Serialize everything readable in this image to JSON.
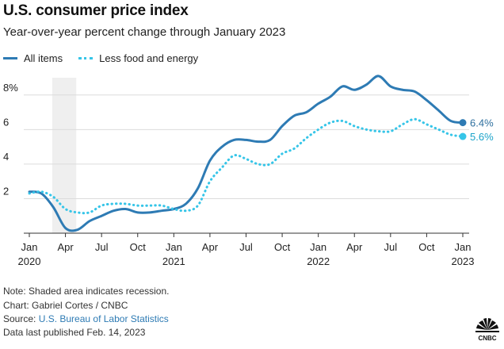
{
  "header": {
    "title": "U.S. consumer price index",
    "subtitle": "Year-over-year percent change through January 2023"
  },
  "legend": {
    "items": [
      {
        "label": "All items",
        "style": "solid",
        "color": "#2e7bb4"
      },
      {
        "label": "Less food and energy",
        "style": "dotted",
        "color": "#36c5e8"
      }
    ]
  },
  "chart_data": {
    "type": "line",
    "title": "U.S. consumer price index",
    "subtitle": "Year-over-year percent change through January 2023",
    "x_unit": "month",
    "x_start": "2020-01",
    "x_end": "2023-01",
    "y_ticks": [
      "2",
      "4",
      "6",
      "8%"
    ],
    "ylim": [
      0,
      9
    ],
    "grid": true,
    "x_ticks": [
      {
        "t": 0,
        "label": "Jan",
        "sub": "2020"
      },
      {
        "t": 3,
        "label": "Apr",
        "sub": ""
      },
      {
        "t": 6,
        "label": "Jul",
        "sub": ""
      },
      {
        "t": 9,
        "label": "Oct",
        "sub": ""
      },
      {
        "t": 12,
        "label": "Jan",
        "sub": "2021"
      },
      {
        "t": 15,
        "label": "Apr",
        "sub": ""
      },
      {
        "t": 18,
        "label": "Jul",
        "sub": ""
      },
      {
        "t": 21,
        "label": "Oct",
        "sub": ""
      },
      {
        "t": 24,
        "label": "Jan",
        "sub": "2022"
      },
      {
        "t": 27,
        "label": "Apr",
        "sub": ""
      },
      {
        "t": 30,
        "label": "Jul",
        "sub": ""
      },
      {
        "t": 33,
        "label": "Oct",
        "sub": ""
      },
      {
        "t": 36,
        "label": "Jan",
        "sub": "2023"
      }
    ],
    "recession": {
      "from": 1.9,
      "to": 3.9
    },
    "series": [
      {
        "name": "All items",
        "style": "solid",
        "color": "#2e7bb4",
        "end_label": "6.4%",
        "points": [
          [
            0,
            2.4
          ],
          [
            1,
            2.3
          ],
          [
            2,
            1.5
          ],
          [
            3,
            0.3
          ],
          [
            4,
            0.2
          ],
          [
            5,
            0.7
          ],
          [
            6,
            1.0
          ],
          [
            7,
            1.3
          ],
          [
            8,
            1.4
          ],
          [
            9,
            1.2
          ],
          [
            10,
            1.2
          ],
          [
            11,
            1.3
          ],
          [
            12,
            1.4
          ],
          [
            13,
            1.7
          ],
          [
            14,
            2.6
          ],
          [
            15,
            4.2
          ],
          [
            16,
            5.0
          ],
          [
            17,
            5.4
          ],
          [
            18,
            5.4
          ],
          [
            19,
            5.3
          ],
          [
            20,
            5.4
          ],
          [
            21,
            6.2
          ],
          [
            22,
            6.8
          ],
          [
            23,
            7.0
          ],
          [
            24,
            7.5
          ],
          [
            25,
            7.9
          ],
          [
            26,
            8.5
          ],
          [
            27,
            8.3
          ],
          [
            28,
            8.6
          ],
          [
            29,
            9.1
          ],
          [
            30,
            8.5
          ],
          [
            31,
            8.3
          ],
          [
            32,
            8.2
          ],
          [
            33,
            7.7
          ],
          [
            34,
            7.1
          ],
          [
            35,
            6.5
          ],
          [
            36,
            6.4
          ]
        ]
      },
      {
        "name": "Less food and energy",
        "style": "dotted",
        "color": "#36c5e8",
        "end_label": "5.6%",
        "points": [
          [
            0,
            2.3
          ],
          [
            1,
            2.4
          ],
          [
            2,
            2.1
          ],
          [
            3,
            1.4
          ],
          [
            4,
            1.2
          ],
          [
            5,
            1.2
          ],
          [
            6,
            1.6
          ],
          [
            7,
            1.7
          ],
          [
            8,
            1.7
          ],
          [
            9,
            1.6
          ],
          [
            10,
            1.6
          ],
          [
            11,
            1.6
          ],
          [
            12,
            1.4
          ],
          [
            13,
            1.3
          ],
          [
            14,
            1.6
          ],
          [
            15,
            3.0
          ],
          [
            16,
            3.8
          ],
          [
            17,
            4.5
          ],
          [
            18,
            4.3
          ],
          [
            19,
            4.0
          ],
          [
            20,
            4.0
          ],
          [
            21,
            4.6
          ],
          [
            22,
            4.9
          ],
          [
            23,
            5.5
          ],
          [
            24,
            6.0
          ],
          [
            25,
            6.4
          ],
          [
            26,
            6.5
          ],
          [
            27,
            6.2
          ],
          [
            28,
            6.0
          ],
          [
            29,
            5.9
          ],
          [
            30,
            5.9
          ],
          [
            31,
            6.3
          ],
          [
            32,
            6.6
          ],
          [
            33,
            6.3
          ],
          [
            34,
            6.0
          ],
          [
            35,
            5.7
          ],
          [
            36,
            5.6
          ]
        ]
      }
    ]
  },
  "footer": {
    "note": "Note: Shaded area indicates recession.",
    "credit": "Chart: Gabriel Cortes / CNBC",
    "source_prefix": "Source: ",
    "source_link": "U.S. Bureau of Labor Statistics",
    "published": "Data last published Feb. 14, 2023",
    "logo_text": "CNBC"
  }
}
